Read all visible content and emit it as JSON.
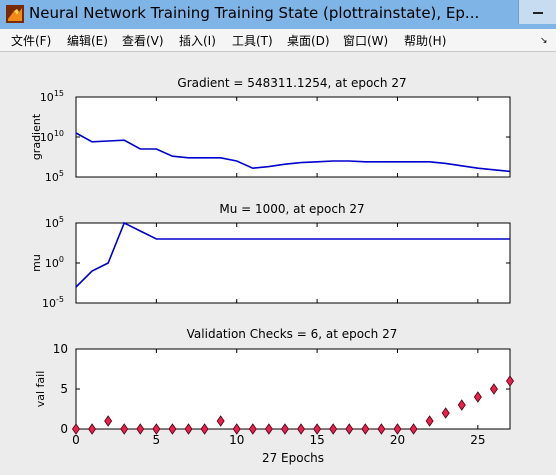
{
  "window": {
    "title": "Neural Network Training Training State (plottrainstate), Ep...",
    "icon": "matlab-icon"
  },
  "menu": [
    {
      "label": "文件(F)"
    },
    {
      "label": "编辑(E)"
    },
    {
      "label": "查看(V)"
    },
    {
      "label": "插入(I)"
    },
    {
      "label": "工具(T)"
    },
    {
      "label": "桌面(D)"
    },
    {
      "label": "窗口(W)"
    },
    {
      "label": "帮助(H)"
    }
  ],
  "colors": {
    "line": "#0000cc",
    "marker_fill": "#e8204a",
    "marker_edge": "#4a0010"
  },
  "chart_data": [
    {
      "type": "line",
      "title": "Gradient = 548311.1254, at epoch 27",
      "ylabel": "gradient",
      "yscale": "log",
      "ylim_exp": [
        5,
        15
      ],
      "y_tick_labels": [
        {
          "base": "10",
          "exp": "15"
        },
        {
          "base": "10",
          "exp": "10"
        },
        {
          "base": "10",
          "exp": "5"
        }
      ],
      "xlim": [
        0,
        27
      ],
      "x": [
        0,
        1,
        2,
        3,
        4,
        5,
        6,
        7,
        8,
        9,
        10,
        11,
        12,
        13,
        14,
        15,
        16,
        17,
        18,
        19,
        20,
        21,
        22,
        23,
        24,
        25,
        26,
        27
      ],
      "log10_y": [
        10.5,
        9.4,
        9.5,
        9.6,
        8.5,
        8.5,
        7.6,
        7.4,
        7.4,
        7.4,
        7.0,
        6.1,
        6.3,
        6.6,
        6.8,
        6.9,
        7.0,
        7.0,
        6.9,
        6.9,
        6.9,
        6.9,
        6.9,
        6.7,
        6.4,
        6.1,
        5.9,
        5.7
      ]
    },
    {
      "type": "line",
      "title": "Mu = 1000, at epoch 27",
      "ylabel": "mu",
      "yscale": "log",
      "ylim_exp": [
        -5,
        5
      ],
      "y_tick_labels": [
        {
          "base": "10",
          "exp": "5"
        },
        {
          "base": "10",
          "exp": "0"
        },
        {
          "base": "10",
          "exp": "-5"
        }
      ],
      "xlim": [
        0,
        27
      ],
      "x": [
        0,
        1,
        2,
        3,
        4,
        5,
        6,
        7,
        8,
        9,
        10,
        11,
        12,
        13,
        14,
        15,
        16,
        17,
        18,
        19,
        20,
        21,
        22,
        23,
        24,
        25,
        26,
        27
      ],
      "log10_y": [
        -3,
        -1,
        0,
        5,
        4,
        3,
        3,
        3,
        3,
        3,
        3,
        3,
        3,
        3,
        3,
        3,
        3,
        3,
        3,
        3,
        3,
        3,
        3,
        3,
        3,
        3,
        3,
        3
      ]
    },
    {
      "type": "scatter",
      "title": "Validation Checks = 6, at epoch 27",
      "ylabel": "val fail",
      "xlabel": "27 Epochs",
      "ylim": [
        0,
        10
      ],
      "y_ticks": [
        0,
        5,
        10
      ],
      "xlim": [
        0,
        27
      ],
      "x_ticks": [
        0,
        5,
        10,
        15,
        20,
        25
      ],
      "x": [
        0,
        1,
        2,
        3,
        4,
        5,
        6,
        7,
        8,
        9,
        10,
        11,
        12,
        13,
        14,
        15,
        16,
        17,
        18,
        19,
        20,
        21,
        22,
        23,
        24,
        25,
        26,
        27
      ],
      "y": [
        0,
        0,
        1,
        0,
        0,
        0,
        0,
        0,
        0,
        1,
        0,
        0,
        0,
        0,
        0,
        0,
        0,
        0,
        0,
        0,
        0,
        0,
        1,
        2,
        3,
        4,
        5,
        6
      ]
    }
  ]
}
